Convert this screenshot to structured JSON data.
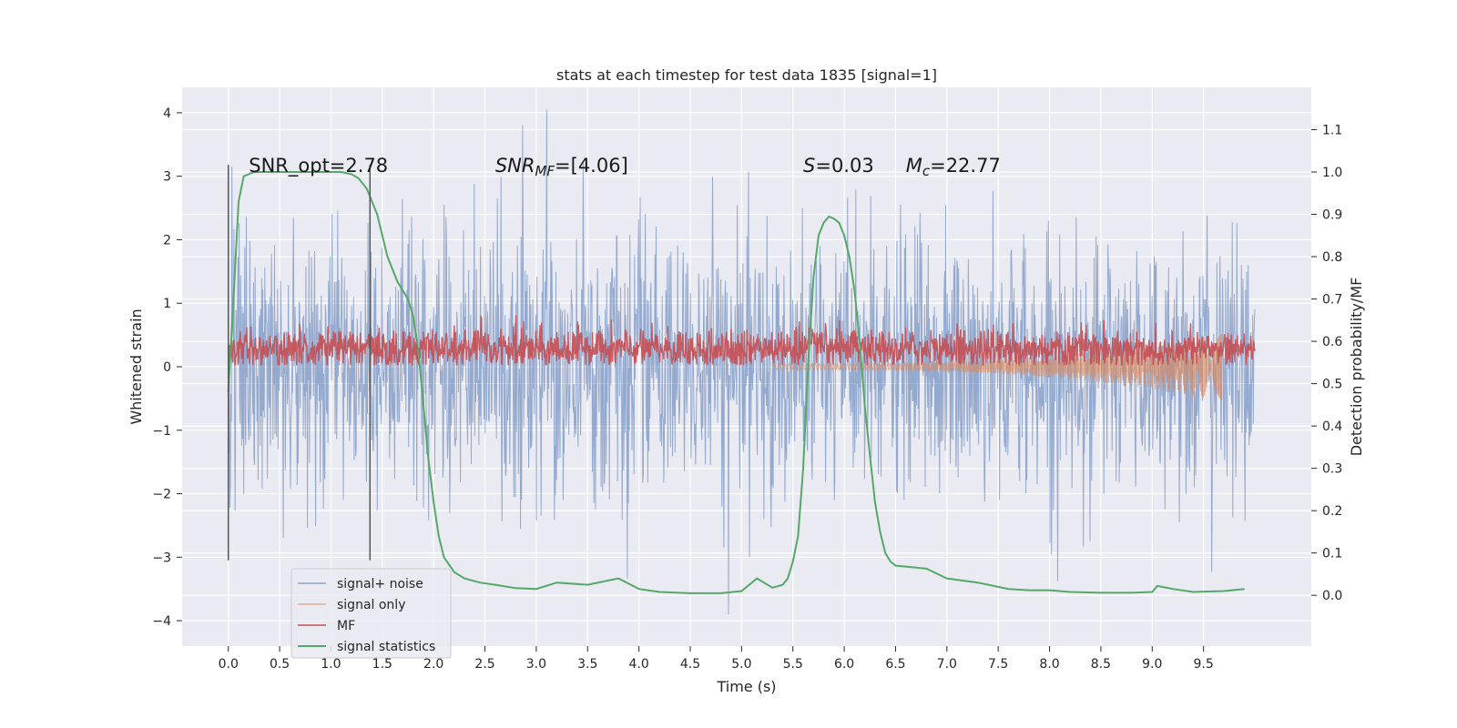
{
  "chart_data": {
    "type": "line",
    "title": "stats at each timestep for test data 1835 [signal=1]",
    "xlabel": "Time (s)",
    "ylabel": "Whitened strain",
    "y2label": "Detection probability/MF",
    "xlim": [
      -0.45,
      10.55
    ],
    "ylim": [
      -4.4,
      4.4
    ],
    "y2lim": [
      -0.12,
      1.2
    ],
    "x_ticks": [
      0.0,
      0.5,
      1.0,
      1.5,
      2.0,
      2.5,
      3.0,
      3.5,
      4.0,
      4.5,
      5.0,
      5.5,
      6.0,
      6.5,
      7.0,
      7.5,
      8.0,
      8.5,
      9.0,
      9.5
    ],
    "x_tick_labels": [
      "0.0",
      "0.5",
      "1.0",
      "1.5",
      "2.0",
      "2.5",
      "3.0",
      "3.5",
      "4.0",
      "4.5",
      "5.0",
      "5.5",
      "6.0",
      "6.5",
      "7.0",
      "7.5",
      "8.0",
      "8.5",
      "9.0",
      "9.5"
    ],
    "y_ticks": [
      -4,
      -3,
      -2,
      -1,
      0,
      1,
      2,
      3,
      4
    ],
    "y_tick_labels": [
      "−4",
      "−3",
      "−2",
      "−1",
      "0",
      "1",
      "2",
      "3",
      "4"
    ],
    "y2_ticks": [
      0.0,
      0.1,
      0.2,
      0.3,
      0.4,
      0.5,
      0.6,
      0.7,
      0.8,
      0.9,
      1.0,
      1.1
    ],
    "y2_tick_labels": [
      "0.0",
      "0.1",
      "0.2",
      "0.3",
      "0.4",
      "0.5",
      "0.6",
      "0.7",
      "0.8",
      "0.9",
      "1.0",
      "1.1"
    ],
    "grid": true,
    "legend_position": "bottom-left",
    "annotations": [
      {
        "id": "snr-opt",
        "x": 0.2,
        "y": 3.15,
        "parts": [
          {
            "text": "SNR_opt=2.78"
          }
        ]
      },
      {
        "id": "snr-mf",
        "x": 2.6,
        "y": 3.15,
        "parts": [
          {
            "text": "SNR",
            "italic": true
          },
          {
            "text": "MF",
            "italic": true,
            "sub": true
          },
          {
            "text": "=[4.06]"
          }
        ]
      },
      {
        "id": "s-value",
        "x": 5.6,
        "y": 3.15,
        "parts": [
          {
            "text": "S",
            "italic": true
          },
          {
            "text": "=0.03"
          }
        ]
      },
      {
        "id": "mc-value",
        "x": 6.6,
        "y": 3.15,
        "parts": [
          {
            "text": "M",
            "italic": true
          },
          {
            "text": "c",
            "italic": true,
            "sub": true
          },
          {
            "text": "=22.77"
          }
        ]
      }
    ],
    "vlines": [
      {
        "x": 0.0,
        "ymin": -3.05,
        "ymax": 3.18
      },
      {
        "x": 1.38,
        "ymin": -3.05,
        "ymax": 3.18
      }
    ],
    "series": [
      {
        "name": "signal+ noise",
        "color": "#4c72b0",
        "axis": "left",
        "kind": "noise",
        "x_range": [
          0.0,
          10.0
        ],
        "samples": 2000,
        "amplitude_sd": 1.0,
        "peak_min": -3.9,
        "peak_max": 4.05
      },
      {
        "name": "signal only",
        "color": "#dd8452",
        "axis": "left",
        "kind": "chirp",
        "x_range": [
          5.3,
          9.68
        ],
        "envelope_start": 0.05,
        "envelope_end": 0.55,
        "freq_start": 18,
        "freq_end": 60
      },
      {
        "name": "MF",
        "color": "#c44e52",
        "axis": "left",
        "kind": "positive-noise",
        "x_range": [
          0.0,
          10.0
        ],
        "samples": 2000,
        "mean": 0.28,
        "peak_max": 1.0
      },
      {
        "name": "signal statistics",
        "color": "#55a868",
        "axis": "right",
        "kind": "line",
        "x": [
          0.0,
          0.05,
          0.1,
          0.15,
          0.25,
          0.4,
          0.6,
          0.8,
          1.0,
          1.1,
          1.2,
          1.27,
          1.35,
          1.45,
          1.55,
          1.65,
          1.75,
          1.8,
          1.85,
          1.9,
          1.95,
          2.0,
          2.05,
          2.1,
          2.2,
          2.3,
          2.45,
          2.6,
          2.8,
          3.0,
          3.2,
          3.5,
          3.8,
          4.0,
          4.2,
          4.5,
          4.8,
          5.0,
          5.15,
          5.3,
          5.4,
          5.45,
          5.5,
          5.55,
          5.6,
          5.65,
          5.7,
          5.75,
          5.8,
          5.85,
          5.9,
          5.95,
          6.0,
          6.05,
          6.1,
          6.15,
          6.2,
          6.25,
          6.3,
          6.35,
          6.4,
          6.45,
          6.5,
          6.6,
          6.8,
          7.0,
          7.3,
          7.6,
          7.8,
          8.0,
          8.2,
          8.5,
          8.8,
          9.0,
          9.05,
          9.2,
          9.4,
          9.7,
          9.9
        ],
        "y": [
          0.48,
          0.7,
          0.93,
          0.99,
          1.0,
          1.0,
          1.0,
          1.0,
          1.0,
          1.0,
          0.995,
          0.985,
          0.96,
          0.9,
          0.8,
          0.74,
          0.7,
          0.66,
          0.58,
          0.45,
          0.32,
          0.22,
          0.14,
          0.09,
          0.055,
          0.04,
          0.03,
          0.025,
          0.017,
          0.015,
          0.03,
          0.025,
          0.04,
          0.015,
          0.008,
          0.005,
          0.005,
          0.01,
          0.04,
          0.018,
          0.025,
          0.04,
          0.08,
          0.14,
          0.3,
          0.55,
          0.75,
          0.85,
          0.88,
          0.895,
          0.89,
          0.88,
          0.85,
          0.8,
          0.72,
          0.6,
          0.45,
          0.33,
          0.22,
          0.15,
          0.1,
          0.08,
          0.07,
          0.068,
          0.063,
          0.04,
          0.03,
          0.015,
          0.012,
          0.012,
          0.008,
          0.006,
          0.006,
          0.008,
          0.022,
          0.015,
          0.008,
          0.01,
          0.015
        ]
      }
    ]
  }
}
